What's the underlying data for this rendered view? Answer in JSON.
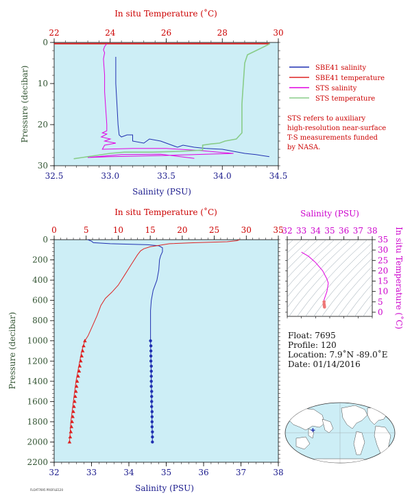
{
  "colors": {
    "plot_bg": "#cdeef6",
    "sbe_salinity": "#1f2fb0",
    "sbe_temperature": "#dd2222",
    "sts_salinity": "#e000e0",
    "sts_temperature": "#88cc88",
    "sts_temperature_overlap": "#999977",
    "axis_red": "#cc0000",
    "axis_blue": "#1a1a8c",
    "axis_green": "#335533",
    "axis_magenta": "#cc00cc"
  },
  "chart_data": [
    {
      "type": "line",
      "name": "top-near-surface",
      "x_bottom_label": "Salinity (PSU)",
      "x_top_label": "In situ Temperature (˚C)",
      "ylabel": "Pressure (decibar)",
      "salinity_range": [
        32.5,
        34.5
      ],
      "temperature_range": [
        22,
        30
      ],
      "pressure_range": [
        0,
        30
      ],
      "salinity_ticks": [
        "32.5",
        "33.0",
        "33.5",
        "34.0",
        "34.5"
      ],
      "temperature_ticks": [
        "22",
        "24",
        "26",
        "28",
        "30"
      ],
      "pressure_ticks": [
        "0",
        "10",
        "20",
        "30"
      ],
      "legend": [
        {
          "label": "SBE41 salinity",
          "color_key": "sbe_salinity"
        },
        {
          "label": "SBE41 temperature",
          "color_key": "sbe_temperature"
        },
        {
          "label": "STS salinity",
          "color_key": "sts_salinity"
        },
        {
          "label": "STS temperature",
          "color_key": "sts_temperature"
        }
      ],
      "note": [
        "STS refers to auxiliary",
        "high-resolution near-surface",
        "T-S measurements funded",
        "by NASA."
      ],
      "series": [
        {
          "key": "sbe_salinity",
          "quantity": "salinity",
          "points": [
            [
              33.05,
              3.5
            ],
            [
              33.05,
              5
            ],
            [
              33.05,
              10
            ],
            [
              33.06,
              15
            ],
            [
              33.07,
              20
            ],
            [
              33.08,
              22.5
            ],
            [
              33.1,
              23
            ],
            [
              33.15,
              22.5
            ],
            [
              33.2,
              22.5
            ],
            [
              33.2,
              24
            ],
            [
              33.3,
              24.5
            ],
            [
              33.35,
              23.5
            ],
            [
              33.45,
              24
            ],
            [
              33.5,
              24.5
            ],
            [
              33.55,
              25
            ],
            [
              33.6,
              25.5
            ],
            [
              33.65,
              25
            ],
            [
              33.75,
              25.5
            ],
            [
              33.85,
              25.8
            ],
            [
              34.0,
              26
            ],
            [
              34.1,
              26.5
            ],
            [
              34.2,
              27
            ],
            [
              34.3,
              27.3
            ],
            [
              34.42,
              27.8
            ]
          ]
        },
        {
          "key": "sbe_temperature",
          "quantity": "temperature",
          "points": [
            [
              22.0,
              0.3
            ],
            [
              29.7,
              0.3
            ]
          ]
        },
        {
          "key": "sts_salinity",
          "quantity": "salinity",
          "points": [
            [
              32.97,
              0.3
            ],
            [
              32.95,
              1
            ],
            [
              32.94,
              1.8
            ],
            [
              32.95,
              2.5
            ],
            [
              32.94,
              4
            ],
            [
              32.95,
              8
            ],
            [
              32.95,
              12
            ],
            [
              32.96,
              16
            ],
            [
              32.97,
              20
            ],
            [
              32.97,
              21.5
            ],
            [
              32.93,
              22
            ],
            [
              32.97,
              22.3
            ],
            [
              32.92,
              23
            ],
            [
              33.0,
              23.5
            ],
            [
              32.95,
              24
            ],
            [
              33.05,
              24.5
            ],
            [
              32.95,
              25
            ],
            [
              32.93,
              26
            ],
            [
              33.2,
              25.8
            ],
            [
              33.5,
              25.8
            ],
            [
              33.8,
              26.3
            ],
            [
              34.0,
              26.8
            ],
            [
              34.1,
              27
            ],
            [
              33.5,
              27.5
            ],
            [
              33.0,
              27.8
            ],
            [
              32.8,
              28
            ],
            [
              33.1,
              27.3
            ],
            [
              33.45,
              27.2
            ],
            [
              33.6,
              27.7
            ],
            [
              33.75,
              28.2
            ]
          ]
        },
        {
          "key": "sts_temperature",
          "quantity": "temperature",
          "points": [
            [
              29.7,
              0.3
            ],
            [
              29.5,
              1
            ],
            [
              29.2,
              2
            ],
            [
              28.9,
              3
            ],
            [
              28.8,
              5
            ],
            [
              28.75,
              10
            ],
            [
              28.7,
              15
            ],
            [
              28.7,
              20
            ],
            [
              28.7,
              22
            ],
            [
              28.5,
              23.5
            ],
            [
              28.1,
              24
            ],
            [
              27.9,
              24.5
            ],
            [
              27.6,
              24.7
            ],
            [
              27.3,
              25
            ],
            [
              27.3,
              26.2
            ],
            [
              26.5,
              26.5
            ],
            [
              25.5,
              26.7
            ],
            [
              24.5,
              26.7
            ],
            [
              24.0,
              27
            ],
            [
              23.5,
              27.5
            ],
            [
              23.0,
              28
            ],
            [
              22.7,
              28.3
            ]
          ]
        }
      ]
    },
    {
      "type": "line",
      "name": "bottom-full-profile",
      "x_bottom_label": "Salinity (PSU)",
      "x_top_label": "In situ Temperature (˚C)",
      "ylabel": "Pressure (decibar)",
      "salinity_range": [
        32,
        38
      ],
      "temperature_range": [
        0,
        35
      ],
      "pressure_range": [
        0,
        2200
      ],
      "salinity_ticks": [
        "32",
        "33",
        "34",
        "35",
        "36",
        "37",
        "38"
      ],
      "temperature_ticks": [
        "0",
        "5",
        "10",
        "15",
        "20",
        "25",
        "30",
        "35"
      ],
      "pressure_ticks": [
        "0",
        "200",
        "400",
        "600",
        "800",
        "1000",
        "1200",
        "1400",
        "1600",
        "1800",
        "2000",
        "2200"
      ],
      "series": [
        {
          "key": "sbe_salinity",
          "quantity": "salinity",
          "points": [
            [
              32.9,
              0
            ],
            [
              33.0,
              15
            ],
            [
              33.05,
              30
            ],
            [
              33.5,
              40
            ],
            [
              34.5,
              50
            ],
            [
              34.8,
              60
            ],
            [
              34.9,
              80
            ],
            [
              34.9,
              120
            ],
            [
              34.85,
              160
            ],
            [
              34.82,
              200
            ],
            [
              34.8,
              300
            ],
            [
              34.75,
              400
            ],
            [
              34.65,
              500
            ],
            [
              34.6,
              600
            ],
            [
              34.58,
              700
            ],
            [
              34.58,
              800
            ],
            [
              34.58,
              900
            ],
            [
              34.58,
              1000
            ],
            [
              34.59,
              1200
            ],
            [
              34.6,
              1400
            ],
            [
              34.61,
              1600
            ],
            [
              34.62,
              1800
            ],
            [
              34.63,
              2000
            ]
          ],
          "markers": [
            [
              34.58,
              1000
            ],
            [
              34.59,
              1050
            ],
            [
              34.59,
              1100
            ],
            [
              34.59,
              1150
            ],
            [
              34.59,
              1200
            ],
            [
              34.6,
              1250
            ],
            [
              34.6,
              1300
            ],
            [
              34.6,
              1350
            ],
            [
              34.6,
              1400
            ],
            [
              34.6,
              1450
            ],
            [
              34.61,
              1500
            ],
            [
              34.61,
              1550
            ],
            [
              34.61,
              1600
            ],
            [
              34.61,
              1650
            ],
            [
              34.62,
              1700
            ],
            [
              34.62,
              1750
            ],
            [
              34.62,
              1800
            ],
            [
              34.62,
              1850
            ],
            [
              34.63,
              1900
            ],
            [
              34.63,
              1950
            ],
            [
              34.63,
              2000
            ]
          ]
        },
        {
          "key": "sbe_temperature",
          "quantity": "temperature",
          "points": [
            [
              29.0,
              0
            ],
            [
              28.5,
              10
            ],
            [
              27.0,
              20
            ],
            [
              22.0,
              30
            ],
            [
              18.0,
              40
            ],
            [
              16.5,
              55
            ],
            [
              15.0,
              70
            ],
            [
              14.0,
              90
            ],
            [
              13.5,
              110
            ],
            [
              13.0,
              150
            ],
            [
              12.0,
              250
            ],
            [
              11.0,
              350
            ],
            [
              10.0,
              450
            ],
            [
              9.0,
              520
            ],
            [
              8.0,
              580
            ],
            [
              7.3,
              650
            ],
            [
              6.7,
              750
            ],
            [
              6.0,
              850
            ],
            [
              5.3,
              950
            ],
            [
              4.8,
              1000
            ],
            [
              4.3,
              1100
            ],
            [
              4.0,
              1200
            ],
            [
              3.7,
              1300
            ],
            [
              3.4,
              1400
            ],
            [
              3.2,
              1500
            ],
            [
              3.0,
              1600
            ],
            [
              2.8,
              1700
            ],
            [
              2.6,
              1800
            ],
            [
              2.5,
              1900
            ],
            [
              2.4,
              2000
            ]
          ],
          "markers": [
            [
              4.8,
              1000
            ],
            [
              4.6,
              1050
            ],
            [
              4.45,
              1100
            ],
            [
              4.3,
              1150
            ],
            [
              4.15,
              1200
            ],
            [
              4.0,
              1250
            ],
            [
              3.9,
              1300
            ],
            [
              3.75,
              1350
            ],
            [
              3.6,
              1400
            ],
            [
              3.5,
              1450
            ],
            [
              3.4,
              1500
            ],
            [
              3.3,
              1550
            ],
            [
              3.2,
              1600
            ],
            [
              3.1,
              1650
            ],
            [
              3.0,
              1700
            ],
            [
              2.9,
              1750
            ],
            [
              2.8,
              1800
            ],
            [
              2.7,
              1850
            ],
            [
              2.6,
              1900
            ],
            [
              2.5,
              1950
            ],
            [
              2.4,
              2000
            ]
          ]
        }
      ]
    },
    {
      "type": "scatter",
      "name": "ts-diagram",
      "x_top_label": "Salinity (PSU)",
      "y_right_label": "In situ Temperature (˚C)",
      "salinity_range": [
        32,
        38
      ],
      "temperature_range": [
        -2,
        35
      ],
      "salinity_ticks": [
        "32",
        "33",
        "34",
        "35",
        "36",
        "37",
        "38"
      ],
      "temperature_ticks": [
        "0",
        "5",
        "10",
        "15",
        "20",
        "25",
        "30",
        "35"
      ],
      "points": [
        [
          33.0,
          29.0
        ],
        [
          33.5,
          27
        ],
        [
          34.0,
          24
        ],
        [
          34.5,
          20
        ],
        [
          34.8,
          16
        ],
        [
          34.9,
          14
        ],
        [
          34.85,
          12
        ],
        [
          34.8,
          10
        ],
        [
          34.7,
          8
        ],
        [
          34.6,
          6
        ],
        [
          34.6,
          5
        ],
        [
          34.6,
          4
        ],
        [
          34.61,
          3.5
        ],
        [
          34.62,
          3
        ],
        [
          34.63,
          2.5
        ]
      ]
    }
  ],
  "float_info": {
    "float_line": "Float:  7695",
    "profile_line": "Profile:  120",
    "location_line": "Location:  7.9˚N  -89.0˚E",
    "date_line": "Date:  01/14/2016"
  },
  "footer": {
    "tiny_text": "FLOAT7695 PROFILE120"
  },
  "map": {
    "marker_lon": -89.0,
    "marker_lat": 7.9
  }
}
